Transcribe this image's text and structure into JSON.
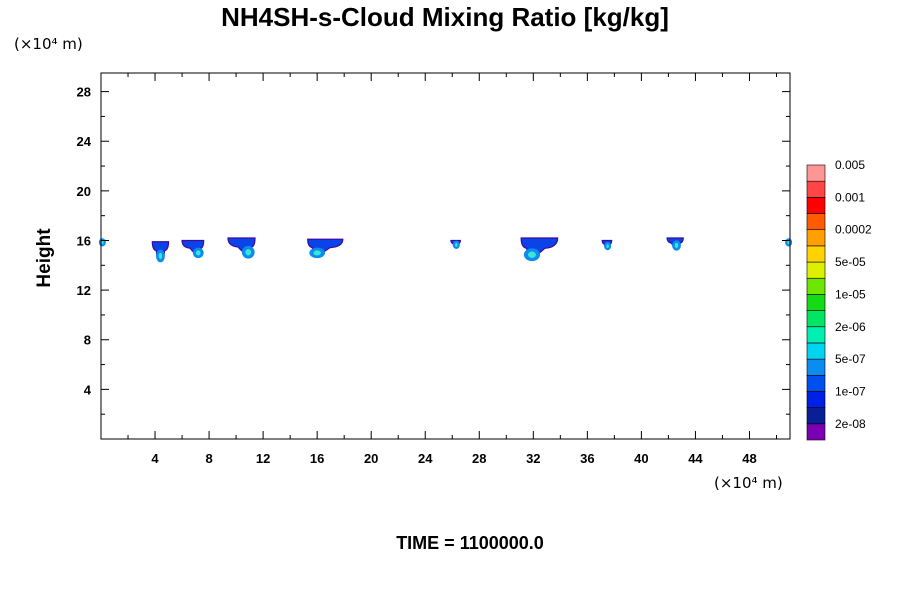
{
  "chart_data": {
    "type": "heatmap",
    "title": "NH4SH-s-Cloud Mixing Ratio [kg/kg]",
    "xlabel": "",
    "ylabel": "Height",
    "x_unit": "(×10⁴ m)",
    "y_unit": "(×10⁴ m)",
    "xlim": [
      0,
      51
    ],
    "ylim": [
      0,
      29.5
    ],
    "x_ticks": [
      4,
      8,
      12,
      16,
      20,
      24,
      28,
      32,
      36,
      40,
      44,
      48
    ],
    "y_ticks": [
      4,
      8,
      12,
      16,
      20,
      24,
      28
    ],
    "footer": "TIME = 1100000.0",
    "colorbar": {
      "colors": [
        "#7b00b4",
        "#0a1e96",
        "#0020e6",
        "#0050f0",
        "#0a8cf0",
        "#00d4f0",
        "#00f0b4",
        "#00e664",
        "#14dc14",
        "#6ee600",
        "#dcf000",
        "#ffd200",
        "#ffa000",
        "#ff5a00",
        "#ff0000",
        "#ff4646",
        "#ff9696"
      ],
      "labels": [
        {
          "text": "2e-08",
          "index": 1
        },
        {
          "text": "1e-07",
          "index": 3
        },
        {
          "text": "5e-07",
          "index": 5
        },
        {
          "text": "2e-06",
          "index": 7
        },
        {
          "text": "1e-05",
          "index": 9
        },
        {
          "text": "5e-05",
          "index": 11
        },
        {
          "text": "0.0002",
          "index": 13
        },
        {
          "text": "0.001",
          "index": 15
        },
        {
          "text": "0.005",
          "index": 17
        }
      ]
    },
    "cloud_patches": [
      {
        "x_start": 3.8,
        "x_end": 5.0,
        "y_bottom": 14.6,
        "y_top": 15.9,
        "core_x": 4.4,
        "core_y": 14.9
      },
      {
        "x_start": 6.0,
        "x_end": 7.6,
        "y_bottom": 14.9,
        "y_top": 16.0,
        "core_x": 7.2,
        "core_y": 15.1
      },
      {
        "x_start": 9.4,
        "x_end": 11.4,
        "y_bottom": 14.9,
        "y_top": 16.2,
        "core_x": 10.9,
        "core_y": 15.2
      },
      {
        "x_start": 15.3,
        "x_end": 17.9,
        "y_bottom": 14.9,
        "y_top": 16.1,
        "core_x": 16.0,
        "core_y": 15.1
      },
      {
        "x_start": 25.9,
        "x_end": 26.6,
        "y_bottom": 15.6,
        "y_top": 16.0,
        "core_x": 26.3,
        "core_y": 15.7
      },
      {
        "x_start": 31.1,
        "x_end": 33.8,
        "y_bottom": 14.7,
        "y_top": 16.2,
        "core_x": 31.9,
        "core_y": 15.0
      },
      {
        "x_start": 37.1,
        "x_end": 37.8,
        "y_bottom": 15.5,
        "y_top": 16.0,
        "core_x": 37.5,
        "core_y": 15.6
      },
      {
        "x_start": 41.9,
        "x_end": 43.1,
        "y_bottom": 15.5,
        "y_top": 16.2,
        "core_x": 42.6,
        "core_y": 15.7
      },
      {
        "x_start": 0.0,
        "x_end": 0.3,
        "y_bottom": 15.8,
        "y_top": 16.0,
        "core_x": 0.1,
        "core_y": 15.9
      },
      {
        "x_start": 50.7,
        "x_end": 51.0,
        "y_bottom": 15.8,
        "y_top": 16.0,
        "core_x": 50.9,
        "core_y": 15.9
      }
    ]
  }
}
